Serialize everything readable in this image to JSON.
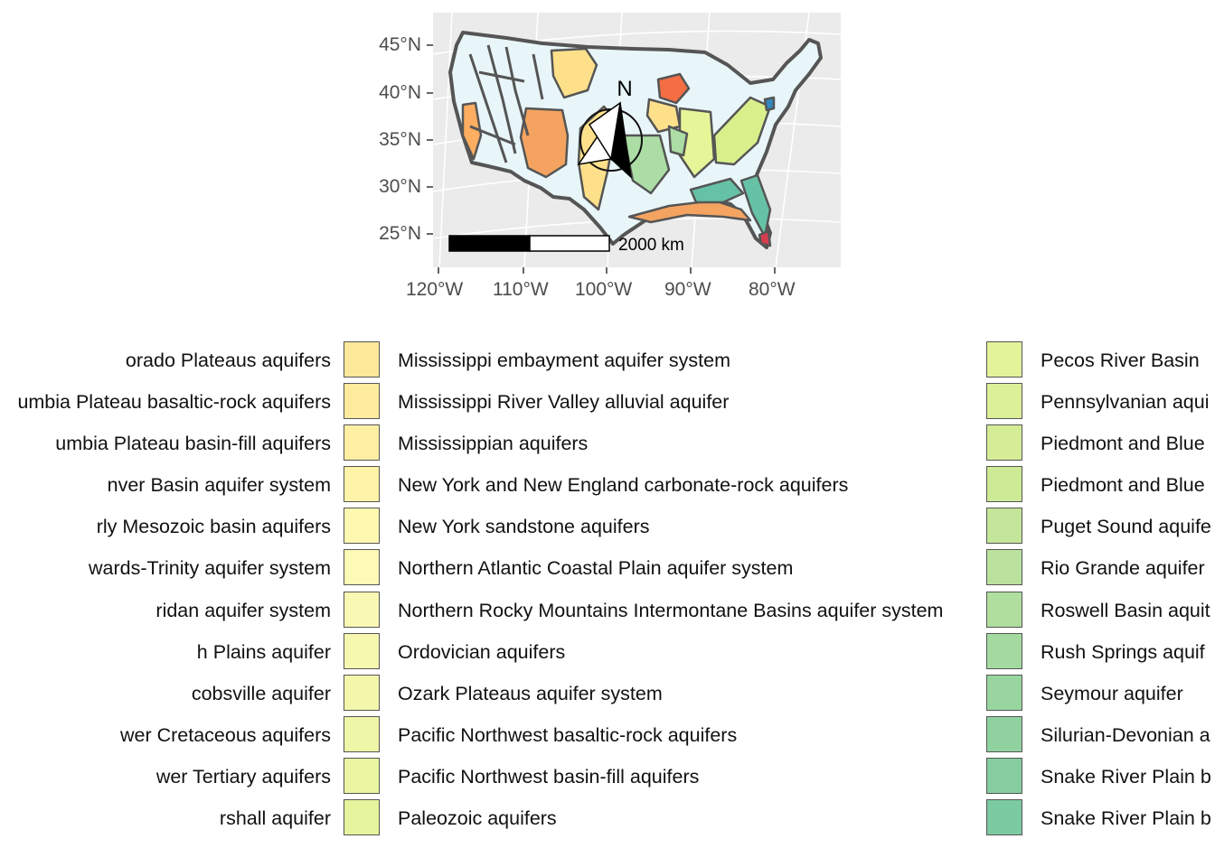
{
  "map": {
    "lat_labels": [
      "45°N",
      "40°N",
      "35°N",
      "30°N",
      "25°N"
    ],
    "lon_labels": [
      "120°W",
      "110°W",
      "100°W",
      "90°W",
      "80°W"
    ],
    "north_arrow": "N",
    "scale_bar_label": "2000 km"
  },
  "legend": {
    "columns": [
      {
        "items": [
          {
            "label": "orado Plateaus aquifers",
            "color": "#fee08b"
          },
          {
            "label": "umbia Plateau basaltic-rock aquifers",
            "color": "#fee490"
          },
          {
            "label": "umbia Plateau basin-fill aquifers",
            "color": "#fee895"
          },
          {
            "label": "nver Basin aquifer system",
            "color": "#feec9a"
          },
          {
            "label": "rly Mesozoic basin aquifers",
            "color": "#fef0a0"
          },
          {
            "label": "wards-Trinity aquifer system",
            "color": "#fef4a6"
          },
          {
            "label": "ridan aquifer system",
            "color": "#fdf8ac"
          },
          {
            "label": "h Plains aquifer",
            "color": "#fbfab0"
          },
          {
            "label": "cobsville aquifer",
            "color": "#f8faae"
          },
          {
            "label": "wer Cretaceous aquifers",
            "color": "#f5f9ab"
          },
          {
            "label": "wer Tertiary aquifers",
            "color": "#f1f7a8"
          },
          {
            "label": "rshall aquifer",
            "color": "#eef6a5"
          }
        ]
      },
      {
        "items": [
          {
            "label": "Mississippi embayment aquifer system",
            "color": "#fee89a"
          },
          {
            "label": "Mississippi River Valley alluvial aquifer",
            "color": "#feeb9e"
          },
          {
            "label": "Mississippian aquifers",
            "color": "#feefa3"
          },
          {
            "label": "New York and New England carbonate-rock aquifers",
            "color": "#fef3a8"
          },
          {
            "label": "New York sandstone aquifers",
            "color": "#fef8b1"
          },
          {
            "label": "Northern Atlantic Coastal Plain aquifer system",
            "color": "#fdfab5"
          },
          {
            "label": "Northern Rocky Mountains Intermontane Basins aquifer system",
            "color": "#f9f9b3"
          },
          {
            "label": "Ordovician aquifers",
            "color": "#f6f8af"
          },
          {
            "label": "Ozark Plateaus aquifer system",
            "color": "#f2f7ab"
          },
          {
            "label": "Pacific Northwest basaltic-rock aquifers",
            "color": "#eef6a7"
          },
          {
            "label": "Pacific Northwest basin-fill aquifers",
            "color": "#eaf5a2"
          },
          {
            "label": "Paleozoic aquifers",
            "color": "#e6f49d"
          }
        ]
      },
      {
        "items": [
          {
            "label": "Pecos River Basin",
            "color": "#e2f39a"
          },
          {
            "label": "Pennsylvanian aqui",
            "color": "#dcf098"
          },
          {
            "label": "Piedmont and Blue",
            "color": "#d5ed96"
          },
          {
            "label": "Piedmont and Blue",
            "color": "#cdea95"
          },
          {
            "label": "Puget Sound aquife",
            "color": "#c4e69a"
          },
          {
            "label": "Rio Grande aquifer",
            "color": "#bae29e"
          },
          {
            "label": "Roswell Basin aquit",
            "color": "#afde9f"
          },
          {
            "label": "Rush Springs aquif",
            "color": "#a4da9f"
          },
          {
            "label": "Seymour aquifer",
            "color": "#99d69f"
          },
          {
            "label": "Silurian-Devonian a",
            "color": "#8fd2a0"
          },
          {
            "label": "Snake River Plain b",
            "color": "#86cea1"
          },
          {
            "label": "Snake River Plain b",
            "color": "#7ccaa2"
          }
        ]
      }
    ]
  }
}
